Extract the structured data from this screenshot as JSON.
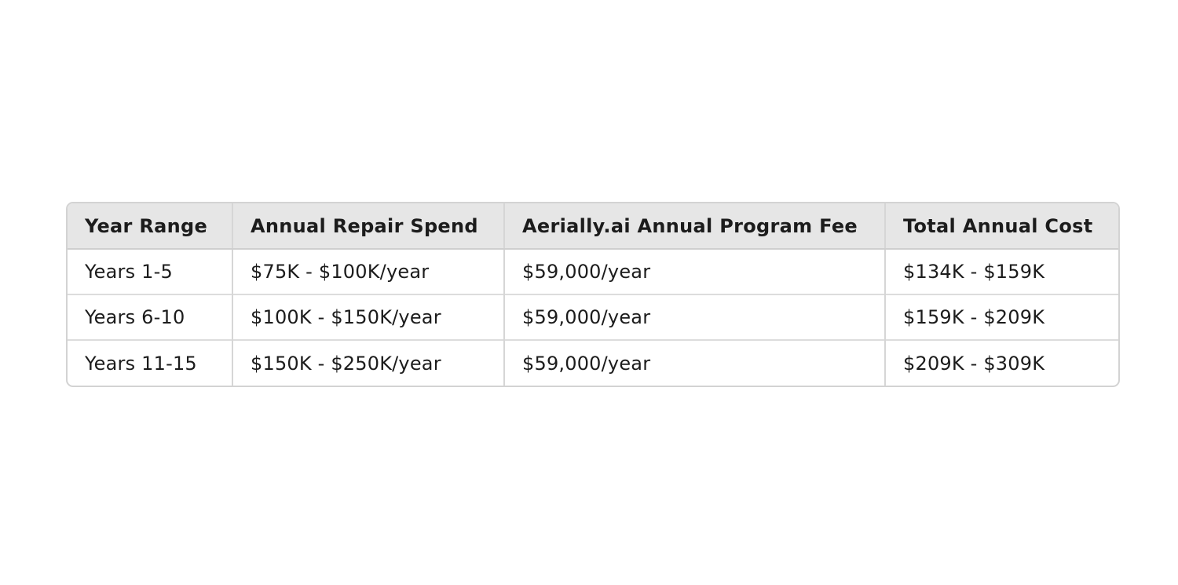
{
  "table": {
    "headers": [
      "Year Range",
      "Annual Repair Spend",
      "Aerially.ai Annual Program Fee",
      "Total Annual Cost"
    ],
    "rows": [
      [
        "Years 1-5",
        "$75K - $100K/year",
        "$59,000/year",
        "$134K - $159K"
      ],
      [
        "Years 6-10",
        "$100K - $150K/year",
        "$59,000/year",
        "$159K - $209K"
      ],
      [
        "Years 11-15",
        "$150K - $250K/year",
        "$59,000/year",
        "$209K - $309K"
      ]
    ]
  },
  "colors": {
    "header_background": "#e6e6e6",
    "border": "#d3d3d3",
    "text": "#1c1c1c"
  }
}
